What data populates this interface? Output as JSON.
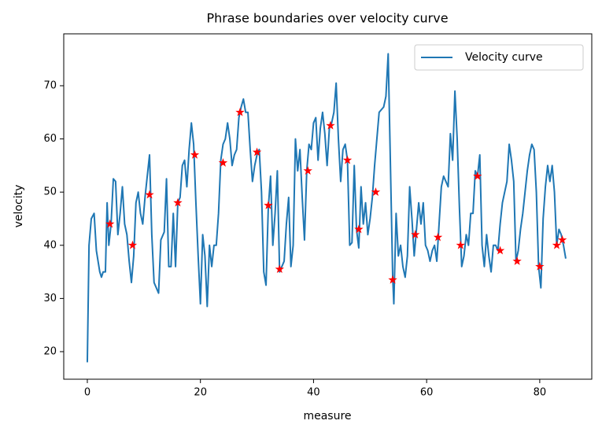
{
  "chart_data": {
    "type": "line",
    "title": "Phrase boundaries over velocity curve",
    "xlabel": "measure",
    "ylabel": "velocity",
    "xlim": [
      -4.17,
      89.2
    ],
    "ylim": [
      14.82,
      79.76
    ],
    "xticks": [
      0,
      20,
      40,
      60,
      80
    ],
    "yticks": [
      20,
      30,
      40,
      50,
      60,
      70
    ],
    "legend": "upper right",
    "series": [
      {
        "name": "Velocity curve",
        "color": "#1f77b4",
        "x": [
          0,
          0.3,
          0.7,
          1.2,
          1.6,
          2.2,
          2.5,
          2.8,
          3.2,
          3.5,
          3.8,
          4.2,
          4.6,
          5.0,
          5.4,
          5.8,
          6.2,
          6.6,
          7.0,
          7.4,
          7.8,
          8.2,
          8.6,
          9.0,
          9.4,
          9.8,
          10.2,
          10.6,
          11.0,
          11.4,
          11.8,
          12.2,
          12.6,
          13.0,
          13.6,
          14.0,
          14.4,
          14.8,
          15.2,
          15.6,
          16.0,
          16.4,
          16.8,
          17.2,
          17.6,
          18.0,
          18.4,
          18.8,
          19.2,
          19.6,
          20.0,
          20.4,
          20.8,
          21.2,
          21.6,
          22.0,
          22.4,
          22.8,
          23.2,
          23.6,
          24.0,
          24.4,
          24.8,
          25.2,
          25.6,
          26.0,
          26.4,
          26.8,
          27.2,
          27.6,
          28.0,
          28.4,
          28.8,
          29.2,
          29.6,
          30.0,
          30.4,
          30.8,
          31.2,
          31.6,
          32.0,
          32.4,
          32.8,
          33.2,
          33.6,
          34.0,
          34.4,
          34.8,
          35.2,
          35.6,
          36.0,
          36.4,
          36.8,
          37.2,
          37.6,
          38.0,
          38.4,
          38.8,
          39.2,
          39.6,
          40.0,
          40.4,
          40.8,
          41.2,
          41.6,
          42.0,
          42.4,
          42.8,
          43.2,
          43.6,
          44.0,
          44.4,
          44.8,
          45.2,
          45.6,
          46.0,
          46.4,
          46.8,
          47.2,
          47.6,
          48.0,
          48.4,
          48.8,
          49.2,
          49.6,
          50.0,
          50.4,
          50.8,
          51.2,
          51.6,
          52.0,
          52.4,
          52.8,
          53.2,
          53.6,
          54.0,
          54.2,
          54.6,
          55.0,
          55.4,
          55.8,
          56.2,
          56.6,
          57.0,
          57.4,
          57.8,
          58.2,
          58.6,
          59.0,
          59.4,
          59.8,
          60.2,
          60.6,
          61.0,
          61.4,
          61.8,
          62.2,
          62.6,
          63.0,
          63.4,
          63.8,
          64.2,
          64.6,
          65.0,
          65.4,
          65.8,
          66.2,
          66.6,
          67.0,
          67.4,
          67.8,
          68.2,
          68.6,
          69.0,
          69.4,
          69.8,
          70.2,
          70.6,
          71.0,
          71.4,
          71.8,
          72.2,
          72.6,
          73.0,
          73.4,
          73.8,
          74.2,
          74.6,
          75.0,
          75.4,
          75.8,
          76.2,
          76.6,
          77.0,
          77.4,
          77.8,
          78.2,
          78.6,
          79.0,
          79.4,
          79.8,
          80.2,
          80.6,
          81.0,
          81.4,
          81.8,
          82.2,
          82.6,
          83.0,
          83.4,
          83.8,
          84.2,
          84.6
        ],
        "values": [
          18,
          40,
          45,
          46,
          39,
          35,
          34,
          35,
          35,
          48,
          40,
          44,
          52.5,
          52,
          42,
          46,
          51,
          44,
          42,
          37,
          33,
          38,
          48,
          50,
          46,
          44,
          49,
          53,
          57,
          42,
          33,
          32,
          31,
          41,
          42.5,
          52.5,
          36,
          36,
          46,
          36,
          48,
          49,
          55,
          56,
          51,
          58,
          63,
          59,
          48,
          38,
          29,
          42,
          38,
          28.5,
          40,
          36,
          40,
          40,
          46,
          56,
          59,
          60,
          63,
          60,
          55,
          57,
          58,
          64,
          66,
          67.5,
          65,
          65,
          58,
          52,
          55,
          57,
          58,
          50,
          35,
          32.5,
          47,
          53,
          40,
          46,
          54,
          35,
          36,
          37,
          44,
          49,
          36,
          40,
          60,
          54,
          58,
          49,
          41,
          54,
          59,
          58,
          63,
          64,
          56,
          62,
          65,
          61,
          55,
          62,
          63,
          65,
          70.5,
          60,
          52,
          58,
          59,
          56,
          40,
          40.5,
          55,
          43,
          39.5,
          51,
          44,
          48,
          42,
          45,
          49,
          55,
          60,
          65,
          65.5,
          66,
          68,
          76,
          55,
          34,
          29,
          46,
          38,
          40,
          36,
          34,
          38,
          51,
          45,
          38,
          43,
          48,
          44,
          48,
          40,
          39,
          37,
          39,
          40,
          37,
          44,
          51,
          53,
          52,
          51,
          61,
          56,
          69,
          60,
          47,
          36,
          38,
          42,
          40,
          46,
          46,
          54,
          53,
          57,
          40,
          36,
          42,
          38,
          35,
          40,
          40,
          39,
          44,
          48,
          50,
          52,
          59,
          56,
          52,
          37,
          39,
          43,
          46,
          50,
          54,
          57,
          59,
          58,
          50,
          36,
          32,
          45,
          51,
          55,
          52,
          55,
          50,
          40,
          43,
          42,
          40,
          37.5
        ]
      }
    ],
    "markers": {
      "color": "red",
      "marker": "star",
      "x": [
        4,
        8,
        11,
        16,
        19,
        24,
        27,
        30,
        32,
        34,
        39,
        43,
        46,
        48,
        51,
        54,
        58,
        62,
        66,
        69,
        73,
        76,
        80,
        83,
        84
      ],
      "values": [
        44,
        40,
        49.5,
        48,
        57,
        55.5,
        65,
        57.5,
        47.5,
        35.5,
        54,
        62.5,
        56,
        43,
        50,
        33.5,
        42,
        41.5,
        40,
        53,
        39,
        37,
        36,
        40,
        41
      ]
    }
  }
}
